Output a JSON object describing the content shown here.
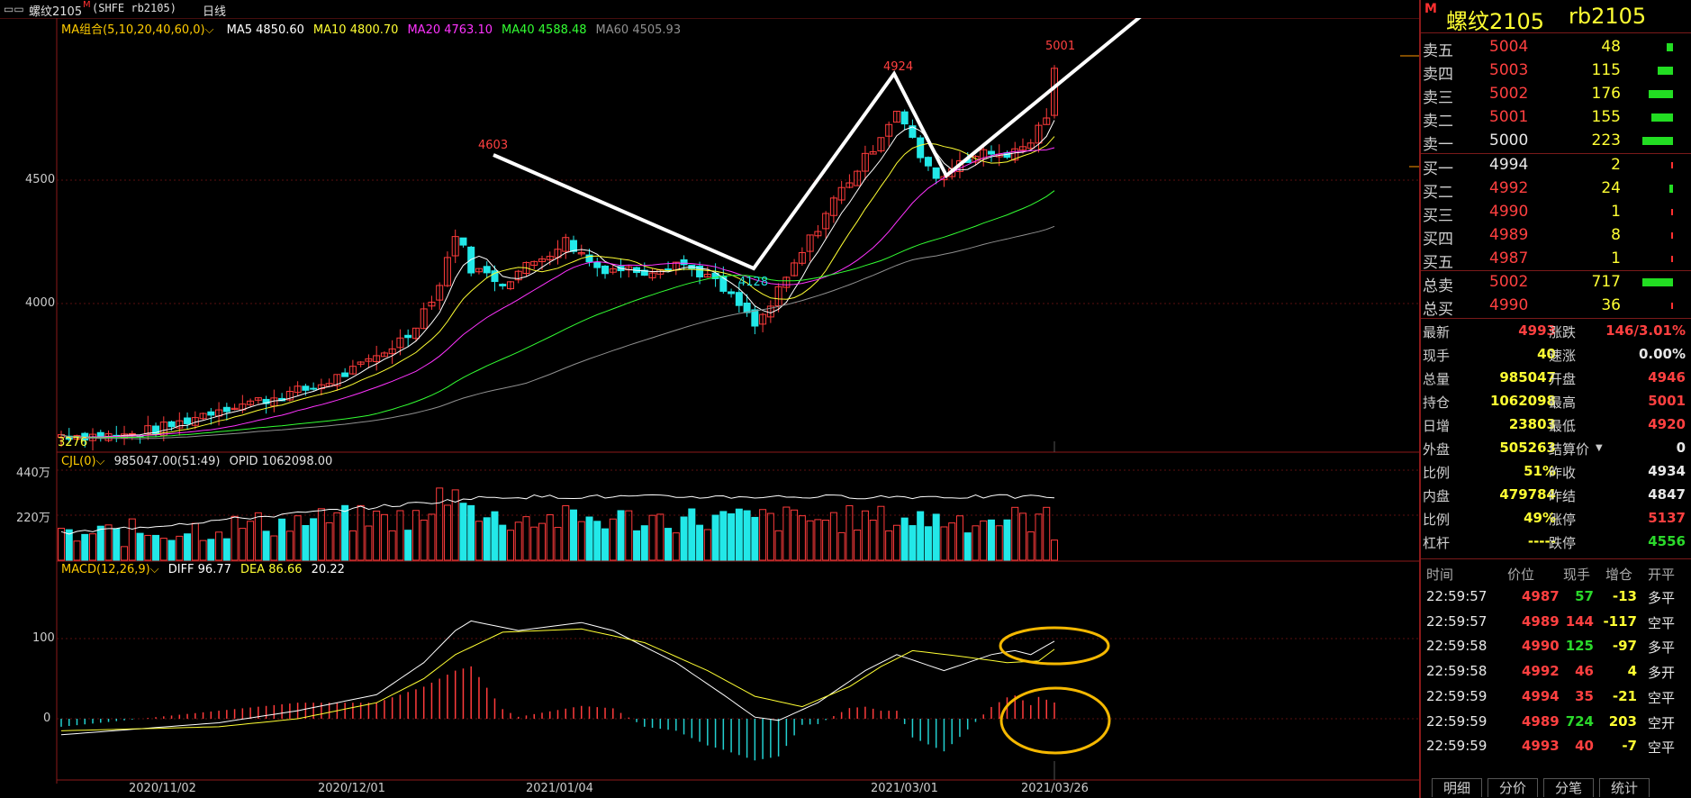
{
  "window": {
    "icon": "window-menu-icon",
    "title": "螺纹2105",
    "title_mark": "M",
    "code": "(SHFE rb2105)",
    "period": "日线"
  },
  "ma_legend": {
    "label": "MA组合(5,10,20,40,60,0)",
    "items": [
      {
        "name": "MA5",
        "value": "4850.60",
        "color": "#ffffff"
      },
      {
        "name": "MA10",
        "value": "4800.70",
        "color": "#ffff33"
      },
      {
        "name": "MA20",
        "value": "4763.10",
        "color": "#ff33ff"
      },
      {
        "name": "MA40",
        "value": "4588.48",
        "color": "#33ff33"
      },
      {
        "name": "MA60",
        "value": "4505.93",
        "color": "#909090"
      }
    ]
  },
  "price_axis": [
    "4500",
    "4000"
  ],
  "price_annotations": {
    "high1": "4603",
    "low1": "4128",
    "high2": "4924",
    "high3": "5001",
    "low0": "3276"
  },
  "vol_legend": {
    "label": "CJL(0)",
    "value": "985047.00(51:49)",
    "opid": "OPID 1062098.00"
  },
  "vol_axis": [
    "440万",
    "220万"
  ],
  "macd_legend": {
    "label": "MACD(12,26,9)",
    "diff": "DIFF 96.77",
    "dea": "DEA 86.66",
    "macd": "20.22"
  },
  "macd_axis": [
    "100",
    "0"
  ],
  "date_axis": [
    "2020/11/02",
    "2020/12/01",
    "2021/01/04",
    "2021/03/01",
    "2021/03/26"
  ],
  "chart_data": [
    {
      "type": "candlestick",
      "title": "螺纹2105",
      "ylim": [
        3700,
        5180
      ],
      "x": [
        "2020/11/02",
        "2020/12/01",
        "2021/01/04",
        "2021/03/01",
        "2021/03/26"
      ],
      "close_samples": [
        3760,
        3900,
        4500,
        4300,
        4128,
        4600,
        4924,
        4660,
        4750,
        4993
      ],
      "annotations": [
        4603,
        4128,
        4924,
        5001
      ]
    },
    {
      "type": "bar",
      "title": "CJL",
      "ylim": [
        0,
        4400000
      ],
      "last_value": 985047
    },
    {
      "type": "bar",
      "title": "MACD",
      "diff": 96.77,
      "dea": 86.66,
      "macd": 20.22
    }
  ],
  "quote_panel": {
    "badge": "M",
    "title": "螺纹2105",
    "code": "rb2105",
    "asks": [
      {
        "label": "卖五",
        "price": "5004",
        "vol": "48",
        "bar": 0.2
      },
      {
        "label": "卖四",
        "price": "5003",
        "vol": "115",
        "bar": 0.5
      },
      {
        "label": "卖三",
        "price": "5002",
        "vol": "176",
        "bar": 0.79
      },
      {
        "label": "卖二",
        "price": "5001",
        "vol": "155",
        "bar": 0.7
      },
      {
        "label": "卖一",
        "price": "5000",
        "vol": "223",
        "bar": 1.0
      }
    ],
    "bids": [
      {
        "label": "买一",
        "price": "4994",
        "vol": "2",
        "bar": 0
      },
      {
        "label": "买二",
        "price": "4992",
        "vol": "24",
        "bar": 0.11
      },
      {
        "label": "买三",
        "price": "4990",
        "vol": "1",
        "bar": 0
      },
      {
        "label": "买四",
        "price": "4989",
        "vol": "8",
        "bar": 0.04
      },
      {
        "label": "买五",
        "price": "4987",
        "vol": "1",
        "bar": 0
      }
    ],
    "totals": [
      {
        "label": "总卖",
        "price": "5002",
        "vol": "717",
        "bar": 1.0
      },
      {
        "label": "总买",
        "price": "4990",
        "vol": "36",
        "bar": 0.05
      }
    ],
    "stats": [
      {
        "l1": "最新",
        "v1": "4993",
        "c1": "red",
        "l2": "涨跌",
        "v2": "146/3.01%",
        "c2": "red"
      },
      {
        "l1": "现手",
        "v1": "40",
        "c1": "yel",
        "l2": "速涨",
        "v2": "0.00%",
        "c2": "wht"
      },
      {
        "l1": "总量",
        "v1": "985047",
        "c1": "yel",
        "l2": "开盘",
        "v2": "4946",
        "c2": "red"
      },
      {
        "l1": "持仓",
        "v1": "1062098",
        "c1": "yel",
        "l2": "最高",
        "v2": "5001",
        "c2": "red"
      },
      {
        "l1": "日增",
        "v1": "23803",
        "c1": "yel",
        "l2": "最低",
        "v2": "4920",
        "c2": "red"
      },
      {
        "l1": "外盘",
        "v1": "505263",
        "c1": "yel",
        "l2": "结算价",
        "v2": "0",
        "c2": "wht"
      },
      {
        "l1": "比例",
        "v1": "51%",
        "c1": "yel",
        "l2": "昨收",
        "v2": "4934",
        "c2": "wht"
      },
      {
        "l1": "内盘",
        "v1": "479784",
        "c1": "yel",
        "l2": "昨结",
        "v2": "4847",
        "c2": "wht"
      },
      {
        "l1": "比例",
        "v1": "49%",
        "c1": "yel",
        "l2": "涨停",
        "v2": "5137",
        "c2": "red"
      },
      {
        "l1": "杠杆",
        "v1": "-----",
        "c1": "yel",
        "l2": "跌停",
        "v2": "4556",
        "c2": "green"
      }
    ],
    "ticks_header": [
      "时间",
      "价位",
      "现手",
      "增仓",
      "开平"
    ],
    "ticks": [
      {
        "time": "22:59:57",
        "price": "4987",
        "hand": "57",
        "hc": "green",
        "add": "-13",
        "ac": "yel",
        "oc": "多平"
      },
      {
        "time": "22:59:57",
        "price": "4989",
        "hand": "144",
        "hc": "red",
        "add": "-117",
        "ac": "yel",
        "oc": "空平"
      },
      {
        "time": "22:59:58",
        "price": "4990",
        "hand": "125",
        "hc": "green",
        "add": "-97",
        "ac": "yel",
        "oc": "多平"
      },
      {
        "time": "22:59:58",
        "price": "4992",
        "hand": "46",
        "hc": "red",
        "add": "4",
        "ac": "yel",
        "oc": "多开"
      },
      {
        "time": "22:59:59",
        "price": "4994",
        "hand": "35",
        "hc": "red",
        "add": "-21",
        "ac": "yel",
        "oc": "空平"
      },
      {
        "time": "22:59:59",
        "price": "4989",
        "hand": "724",
        "hc": "green",
        "add": "203",
        "ac": "yel",
        "oc": "空开"
      },
      {
        "time": "22:59:59",
        "price": "4993",
        "hand": "40",
        "hc": "red",
        "add": "-7",
        "ac": "yel",
        "oc": "空平"
      }
    ],
    "tabs": [
      "明细",
      "分价",
      "分笔",
      "统计"
    ]
  }
}
